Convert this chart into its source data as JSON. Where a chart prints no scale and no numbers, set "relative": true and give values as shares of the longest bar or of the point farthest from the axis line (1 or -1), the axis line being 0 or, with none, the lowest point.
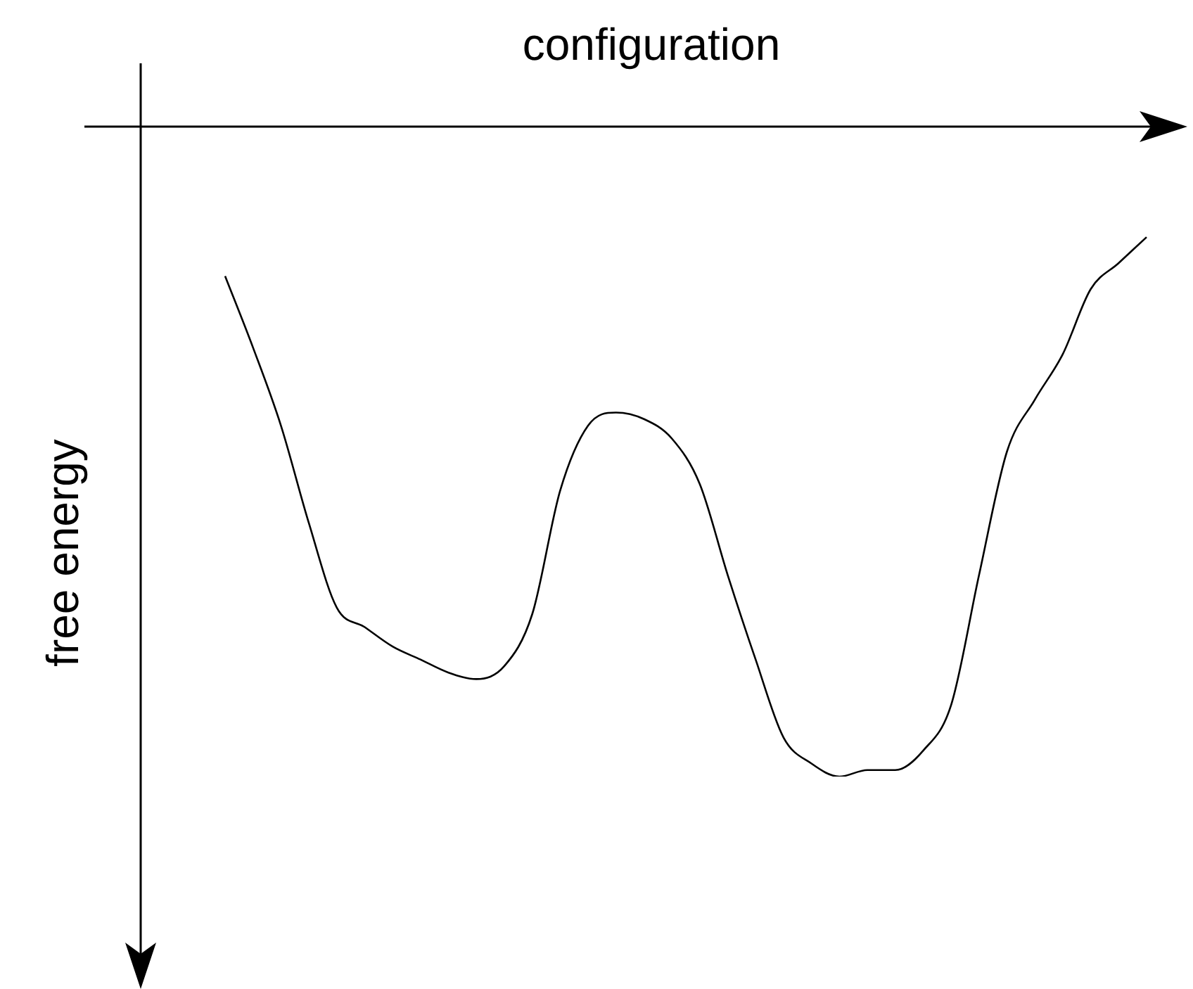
{
  "chart_data": {
    "type": "line",
    "xlabel": "configuration",
    "ylabel": "free energy",
    "relative": true,
    "marker": "none",
    "color": "#000000",
    "categories": [
      null,
      null,
      null,
      null,
      null,
      null,
      null,
      null,
      null,
      null,
      null,
      null,
      null,
      null,
      null,
      null,
      null,
      null,
      null,
      null,
      null,
      null,
      null,
      null,
      null,
      null,
      null,
      null,
      null,
      null,
      null,
      null,
      null,
      null
    ],
    "values": [
      -0.23,
      -0.34,
      -0.46,
      -0.61,
      -0.74,
      -0.77,
      -0.8,
      -0.82,
      -0.84,
      -0.85,
      -0.83,
      -0.75,
      -0.56,
      -0.46,
      -0.44,
      -0.45,
      -0.48,
      -0.55,
      -0.69,
      -0.82,
      -0.94,
      -0.98,
      -1,
      -0.99,
      -0.99,
      -0.96,
      -0.89,
      -0.69,
      -0.5,
      -0.42,
      -0.35,
      -0.25,
      -0.21,
      -0.17
    ]
  }
}
